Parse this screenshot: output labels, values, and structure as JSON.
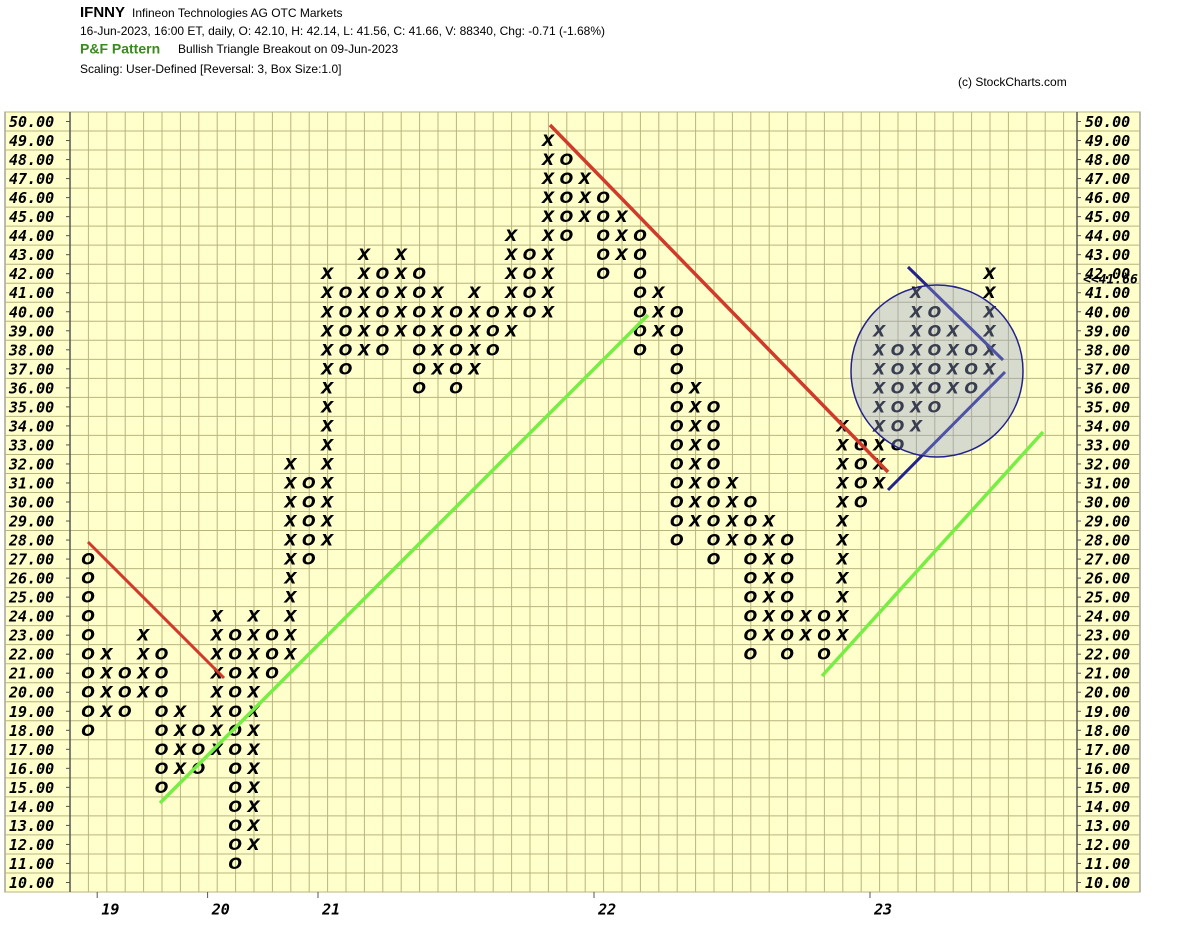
{
  "chart_data": {
    "type": "point-and-figure",
    "symbol": "IFNNY",
    "name": "Infineon Technologies AG  OTC Markets",
    "quote": "16-Jun-2023, 16:00 ET, daily, O: 42.10, H: 42.14, L: 41.56, C: 41.66, V: 88340, Chg: -0.71 (-1.68%)",
    "pattern_label": "P&F Pattern",
    "pattern": "Bullish Triangle Breakout on 09-Jun-2023",
    "scaling": "Scaling: User-Defined [Reversal: 3, Box Size:1.0]",
    "credit": "(c) StockCharts.com",
    "box_size": 1,
    "ylim": [
      9.5,
      50.5
    ],
    "yticks": [
      {
        "value": 10,
        "label": "10.00"
      },
      {
        "value": 11,
        "label": "11.00"
      },
      {
        "value": 12,
        "label": "12.00"
      },
      {
        "value": 13,
        "label": "13.00"
      },
      {
        "value": 14,
        "label": "14.00"
      },
      {
        "value": 15,
        "label": "15.00"
      },
      {
        "value": 16,
        "label": "16.00"
      },
      {
        "value": 17,
        "label": "17.00"
      },
      {
        "value": 18,
        "label": "18.00"
      },
      {
        "value": 19,
        "label": "19.00"
      },
      {
        "value": 20,
        "label": "20.00"
      },
      {
        "value": 21,
        "label": "21.00"
      },
      {
        "value": 22,
        "label": "22.00"
      },
      {
        "value": 23,
        "label": "23.00"
      },
      {
        "value": 24,
        "label": "24.00"
      },
      {
        "value": 25,
        "label": "25.00"
      },
      {
        "value": 26,
        "label": "26.00"
      },
      {
        "value": 27,
        "label": "27.00"
      },
      {
        "value": 28,
        "label": "28.00"
      },
      {
        "value": 29,
        "label": "29.00"
      },
      {
        "value": 30,
        "label": "30.00"
      },
      {
        "value": 31,
        "label": "31.00"
      },
      {
        "value": 32,
        "label": "32.00"
      },
      {
        "value": 33,
        "label": "33.00"
      },
      {
        "value": 34,
        "label": "34.00"
      },
      {
        "value": 35,
        "label": "35.00"
      },
      {
        "value": 36,
        "label": "36.00"
      },
      {
        "value": 37,
        "label": "37.00"
      },
      {
        "value": 38,
        "label": "38.00"
      },
      {
        "value": 39,
        "label": "39.00"
      },
      {
        "value": 40,
        "label": "40.00"
      },
      {
        "value": 41,
        "label": "41.00"
      },
      {
        "value": 42,
        "label": "42.00"
      },
      {
        "value": 43,
        "label": "43.00"
      },
      {
        "value": 44,
        "label": "44.00"
      },
      {
        "value": 45,
        "label": "45.00"
      },
      {
        "value": 46,
        "label": "46.00"
      },
      {
        "value": 47,
        "label": "47.00"
      },
      {
        "value": 48,
        "label": "48.00"
      },
      {
        "value": 49,
        "label": "49.00"
      },
      {
        "value": 50,
        "label": "50.00"
      }
    ],
    "last": {
      "value": 41.66,
      "label": "<<41.66"
    },
    "categories": [
      null,
      "19",
      null,
      null,
      null,
      null,
      null,
      "20",
      null,
      null,
      null,
      null,
      null,
      "21",
      null,
      null,
      null,
      null,
      null,
      null,
      null,
      null,
      null,
      null,
      null,
      null,
      null,
      null,
      "22",
      null,
      null,
      null,
      null,
      null,
      null,
      null,
      null,
      null,
      null,
      null,
      null,
      null,
      null,
      "23",
      null,
      null,
      null,
      null,
      null,
      null
    ],
    "columns": [
      {
        "type": "O",
        "low": 18,
        "high": 27
      },
      {
        "type": "X",
        "low": 19,
        "high": 22
      },
      {
        "type": "O",
        "low": 19,
        "high": 21
      },
      {
        "type": "X",
        "low": 20,
        "high": 23
      },
      {
        "type": "O",
        "low": 15,
        "high": 22
      },
      {
        "type": "X",
        "low": 16,
        "high": 19
      },
      {
        "type": "O",
        "low": 16,
        "high": 18
      },
      {
        "type": "X",
        "low": 17,
        "high": 24
      },
      {
        "type": "O",
        "low": 11,
        "high": 23
      },
      {
        "type": "X",
        "low": 12,
        "high": 24
      },
      {
        "type": "O",
        "low": 21,
        "high": 23
      },
      {
        "type": "X",
        "low": 22,
        "high": 32
      },
      {
        "type": "O",
        "low": 27,
        "high": 31
      },
      {
        "type": "X",
        "low": 28,
        "high": 42
      },
      {
        "type": "O",
        "low": 37,
        "high": 41
      },
      {
        "type": "X",
        "low": 38,
        "high": 43
      },
      {
        "type": "O",
        "low": 38,
        "high": 42
      },
      {
        "type": "X",
        "low": 39,
        "high": 43
      },
      {
        "type": "O",
        "low": 36,
        "high": 42
      },
      {
        "type": "X",
        "low": 37,
        "high": 41
      },
      {
        "type": "O",
        "low": 36,
        "high": 40
      },
      {
        "type": "X",
        "low": 37,
        "high": 41
      },
      {
        "type": "O",
        "low": 38,
        "high": 40
      },
      {
        "type": "X",
        "low": 39,
        "high": 44
      },
      {
        "type": "O",
        "low": 40,
        "high": 43
      },
      {
        "type": "X",
        "low": 40,
        "high": 49
      },
      {
        "type": "O",
        "low": 44,
        "high": 48
      },
      {
        "type": "X",
        "low": 45,
        "high": 47
      },
      {
        "type": "O",
        "low": 42,
        "high": 46
      },
      {
        "type": "X",
        "low": 43,
        "high": 45
      },
      {
        "type": "O",
        "low": 38,
        "high": 44
      },
      {
        "type": "X",
        "low": 39,
        "high": 41
      },
      {
        "type": "O",
        "low": 28,
        "high": 40
      },
      {
        "type": "X",
        "low": 29,
        "high": 36
      },
      {
        "type": "O",
        "low": 27,
        "high": 35
      },
      {
        "type": "X",
        "low": 28,
        "high": 31
      },
      {
        "type": "O",
        "low": 22,
        "high": 30
      },
      {
        "type": "X",
        "low": 23,
        "high": 29
      },
      {
        "type": "O",
        "low": 22,
        "high": 28
      },
      {
        "type": "X",
        "low": 23,
        "high": 24
      },
      {
        "type": "O",
        "low": 22,
        "high": 24
      },
      {
        "type": "X",
        "low": 23,
        "high": 34
      },
      {
        "type": "O",
        "low": 30,
        "high": 33
      },
      {
        "type": "X",
        "low": 31,
        "high": 39
      },
      {
        "type": "O",
        "low": 33,
        "high": 38
      },
      {
        "type": "X",
        "low": 34,
        "high": 41
      },
      {
        "type": "O",
        "low": 35,
        "high": 40
      },
      {
        "type": "X",
        "low": 36,
        "high": 39
      },
      {
        "type": "O",
        "low": 36,
        "high": 38
      },
      {
        "type": "X",
        "low": 37,
        "high": 42
      }
    ]
  }
}
